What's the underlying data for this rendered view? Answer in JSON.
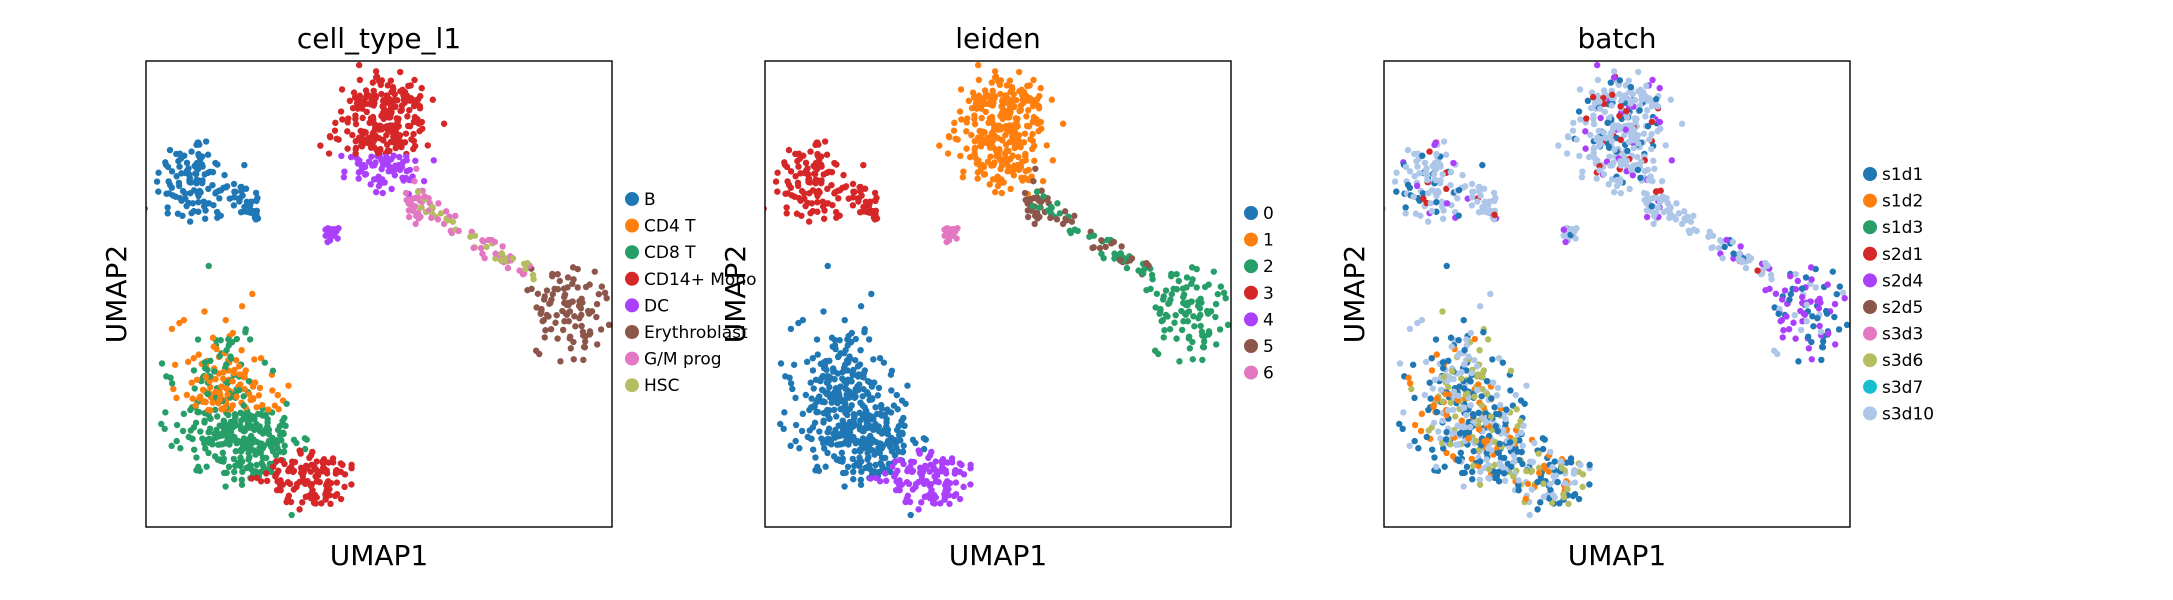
{
  "chart_data": [
    {
      "type": "scatter",
      "title": "cell_type_l1",
      "xlabel": "UMAP1",
      "ylabel": "UMAP2",
      "legend_position": "right",
      "series": [
        {
          "name": "B",
          "color": "#1f77b4"
        },
        {
          "name": "CD4 T",
          "color": "#ff7f0e"
        },
        {
          "name": "CD8 T",
          "color": "#279e68"
        },
        {
          "name": "CD14+ Mono",
          "color": "#d62728"
        },
        {
          "name": "DC",
          "color": "#aa40fc"
        },
        {
          "name": "Erythroblast",
          "color": "#8c564b"
        },
        {
          "name": "G/M prog",
          "color": "#e377c2"
        },
        {
          "name": "HSC",
          "color": "#b5bd61"
        }
      ]
    },
    {
      "type": "scatter",
      "title": "leiden",
      "xlabel": "UMAP1",
      "ylabel": "UMAP2",
      "legend_position": "right",
      "series": [
        {
          "name": "0",
          "color": "#1f77b4"
        },
        {
          "name": "1",
          "color": "#ff7f0e"
        },
        {
          "name": "2",
          "color": "#279e68"
        },
        {
          "name": "3",
          "color": "#d62728"
        },
        {
          "name": "4",
          "color": "#aa40fc"
        },
        {
          "name": "5",
          "color": "#8c564b"
        },
        {
          "name": "6",
          "color": "#e377c2"
        }
      ]
    },
    {
      "type": "scatter",
      "title": "batch",
      "xlabel": "UMAP1",
      "ylabel": "UMAP2",
      "legend_position": "right",
      "series": [
        {
          "name": "s1d1",
          "color": "#1f77b4"
        },
        {
          "name": "s1d2",
          "color": "#ff7f0e"
        },
        {
          "name": "s1d3",
          "color": "#279e68"
        },
        {
          "name": "s2d1",
          "color": "#d62728"
        },
        {
          "name": "s2d4",
          "color": "#aa40fc"
        },
        {
          "name": "s2d5",
          "color": "#8c564b"
        },
        {
          "name": "s3d3",
          "color": "#e377c2"
        },
        {
          "name": "s3d6",
          "color": "#b5bd61"
        },
        {
          "name": "s3d7",
          "color": "#17becf"
        },
        {
          "name": "s3d10",
          "color": "#aec7e8"
        }
      ]
    }
  ]
}
